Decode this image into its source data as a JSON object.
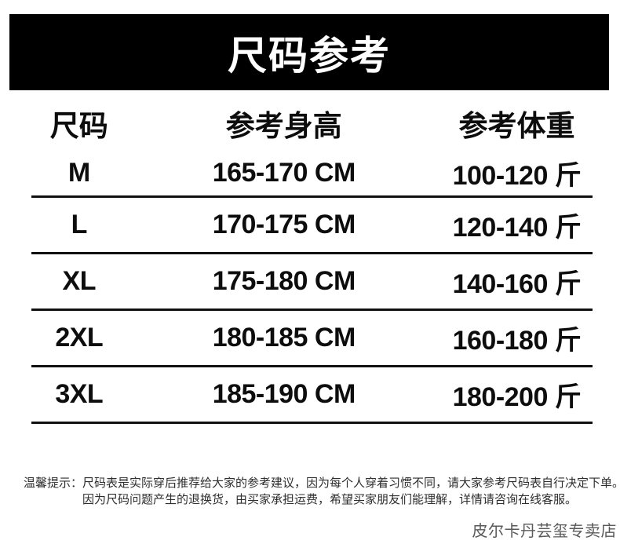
{
  "banner": {
    "title": "尺码参考"
  },
  "table": {
    "headers": [
      "尺码",
      "参考身高",
      "参考体重"
    ],
    "rows": [
      {
        "size": "M",
        "height": "165-170 CM",
        "weight": "100-120 斤"
      },
      {
        "size": "L",
        "height": "170-175 CM",
        "weight": "120-140 斤"
      },
      {
        "size": "XL",
        "height": "175-180 CM",
        "weight": "140-160 斤"
      },
      {
        "size": "2XL",
        "height": "180-185 CM",
        "weight": "160-180 斤"
      },
      {
        "size": "3XL",
        "height": "185-190 CM",
        "weight": "180-200 斤"
      }
    ]
  },
  "tips": {
    "label": "温馨提示：",
    "line1": "尺码表是实际穿后推荐给大家的参考建议，因为每个人穿着习惯不同，请大家参考尺码表自行决定下单。",
    "line2": "因为尺码问题产生的退换货，由买家承担运费，希望买家朋友们能理解，详情请咨询在线客服。"
  },
  "watermark": "皮尔卡丹芸玺专卖店",
  "colors": {
    "banner_bg": "#000000",
    "banner_text": "#ffffff",
    "table_text": "#0d0d0d",
    "divider": "#101010",
    "tip_text": "#2e2e2e",
    "watermark_text": "#5a5a5a"
  }
}
